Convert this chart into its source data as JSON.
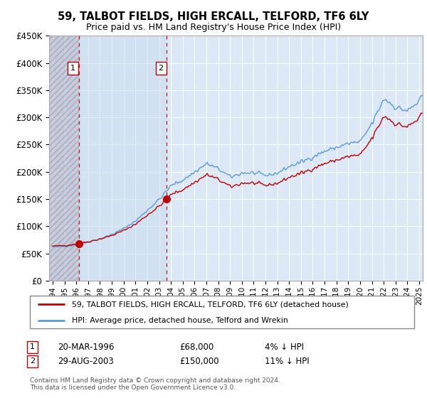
{
  "title": "59, TALBOT FIELDS, HIGH ERCALL, TELFORD, TF6 6LY",
  "subtitle": "Price paid vs. HM Land Registry's House Price Index (HPI)",
  "legend_line1": "59, TALBOT FIELDS, HIGH ERCALL, TELFORD, TF6 6LY (detached house)",
  "legend_line2": "HPI: Average price, detached house, Telford and Wrekin",
  "sale1_label": "1",
  "sale1_date": "20-MAR-1996",
  "sale1_price": "£68,000",
  "sale1_hpi": "4% ↓ HPI",
  "sale2_label": "2",
  "sale2_date": "29-AUG-2003",
  "sale2_price": "£150,000",
  "sale2_hpi": "11% ↓ HPI",
  "footer": "Contains HM Land Registry data © Crown copyright and database right 2024.\nThis data is licensed under the Open Government Licence v3.0.",
  "hpi_color": "#5b9bd5",
  "price_color": "#c00000",
  "sale_marker_color": "#c00000",
  "dashed_line_color": "#c00000",
  "background_plot": "#dce8f5",
  "ylim": [
    0,
    450000
  ],
  "yticks": [
    0,
    50000,
    100000,
    150000,
    200000,
    250000,
    300000,
    350000,
    400000,
    450000
  ],
  "sale1_x": 1996.21,
  "sale1_y": 68000,
  "sale2_x": 2003.66,
  "sale2_y": 150000,
  "xmin": 1994.0,
  "xmax": 2025.3
}
